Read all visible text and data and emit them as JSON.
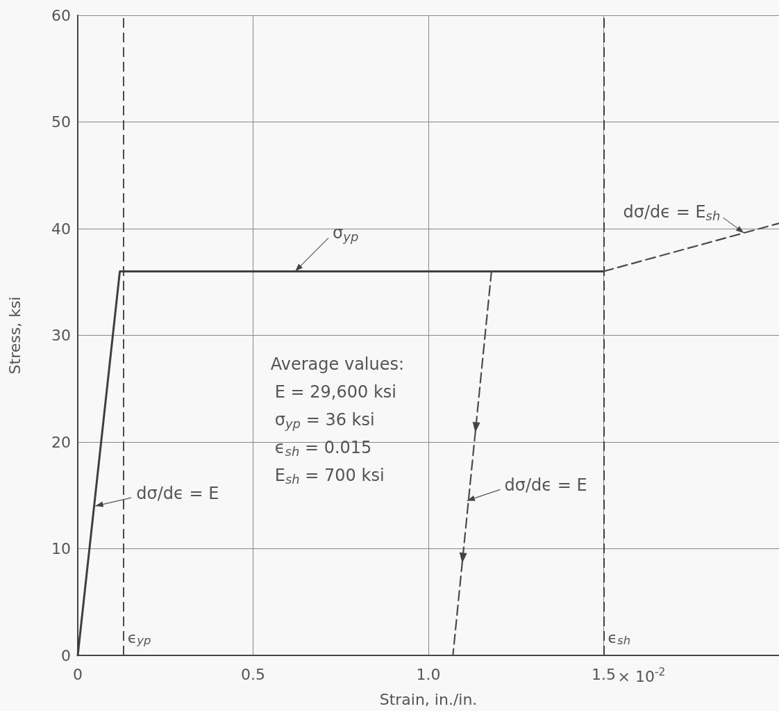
{
  "chart_data": {
    "type": "line",
    "xlabel": "Strain, in./in.",
    "ylabel": "Stress, ksi",
    "xlim": [
      0,
      2
    ],
    "ylim": [
      0,
      60
    ],
    "xticks": [
      0,
      0.5,
      {
        "value": 1,
        "label": "1.0"
      },
      1.5
    ],
    "yticks": [
      0,
      10,
      20,
      30,
      40,
      50,
      60
    ],
    "grid": true,
    "marker": "none",
    "series": [
      {
        "color": "#3f3f3f",
        "line_style": "solid",
        "x": [
          0,
          0.12,
          1.5
        ],
        "values": [
          0,
          36,
          36
        ]
      },
      {
        "color": "#4a4a4a",
        "line_style": "dashed",
        "x": [
          1.5,
          2.0
        ],
        "values": [
          36,
          40.5
        ]
      },
      {
        "color": "#4a4a4a",
        "line_style": "dashed",
        "x": [
          1.18,
          1.07
        ],
        "values": [
          36,
          0
        ]
      }
    ],
    "ref_lines": [
      {
        "axis": "x",
        "value": 0.13,
        "label": "ϵ$_{yp}$",
        "color": "#4a4a4a",
        "line_style": "dashed"
      },
      {
        "axis": "x",
        "value": 1.5,
        "label": "ϵ$_{sh}$",
        "color": "#3f3f3f",
        "line_style": "dashed"
      }
    ],
    "annotations": [
      {
        "text": "σ$_{yp}$",
        "x": 0.62,
        "y": 36
      },
      {
        "text": "dσ/dϵ = E",
        "x": 0.05,
        "y": 14
      },
      {
        "text": "dσ/dϵ = E",
        "x": 1.11,
        "y": 14.5
      },
      {
        "text": "dσ/dϵ = E$_{sh}$",
        "x": 1.9,
        "y": 39.6
      },
      "Average values:",
      "E = 29,600 ksi",
      "σ$_{yp}$ = 36 ksi",
      "ϵ$_{sh}$ = 0.015",
      "E$_{sh}$ = 700 ksi",
      "× 10$^{-2}$"
    ]
  }
}
